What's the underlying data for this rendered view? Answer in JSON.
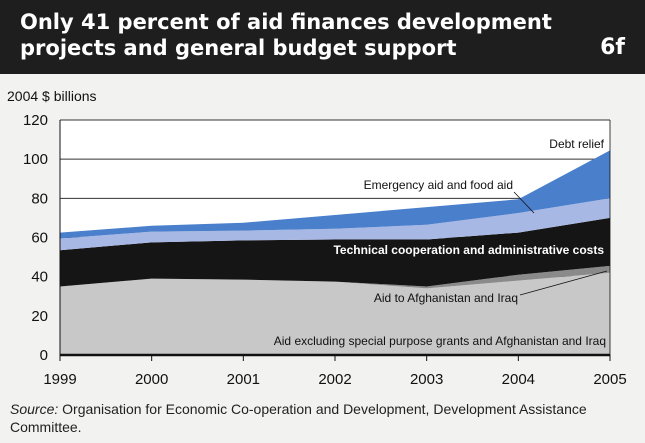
{
  "header": {
    "title": "Only 41 percent of aid finances development projects and general budget support",
    "figure_id": "6f"
  },
  "source": {
    "label": "Source:",
    "text": "Organisation for Economic Co-operation and Development, Development Assistance Committee."
  },
  "chart_data": {
    "type": "area",
    "stacked": true,
    "ylabel": "2004 $ billions",
    "x": [
      1999,
      2000,
      2001,
      2002,
      2003,
      2004,
      2005
    ],
    "ylim": [
      0,
      120
    ],
    "yticks": [
      0,
      20,
      40,
      60,
      80,
      100,
      120
    ],
    "grid": "horizontal",
    "series": [
      {
        "name": "Aid excluding special purpose grants and Afghanistan and Iraq",
        "color": "#c8c8c8",
        "values": [
          35,
          39,
          38.5,
          37.5,
          34,
          38,
          42
        ]
      },
      {
        "name": "Aid to Afghanistan and Iraq",
        "color": "#8a8a8a",
        "values": [
          0,
          0,
          0,
          0,
          1,
          3,
          3.5
        ]
      },
      {
        "name": "Technical cooperation and administrative costs",
        "color": "#151515",
        "values": [
          18.5,
          18.5,
          20,
          21.5,
          24,
          21.5,
          24.5
        ]
      },
      {
        "name": "Emergency aid and food aid",
        "color": "#a8b8e4",
        "values": [
          6,
          5.5,
          5,
          5.5,
          7.5,
          10,
          10
        ]
      },
      {
        "name": "Debt relief",
        "color": "#4a7fcc",
        "values": [
          3,
          3,
          4,
          7,
          9,
          7,
          24.5
        ]
      }
    ],
    "labels": {
      "debt": "Debt relief",
      "emergency": "Emergency aid and food aid",
      "technical": "Technical cooperation and administrative costs",
      "afghan": "Aid to Afghanistan and Iraq",
      "base": "Aid excluding special purpose grants and Afghanistan and Iraq"
    }
  }
}
